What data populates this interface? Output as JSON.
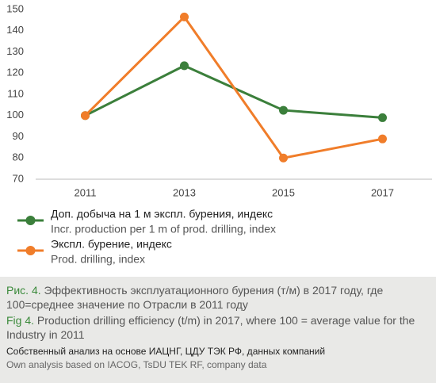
{
  "chart_data": {
    "type": "line",
    "categories": [
      "2011",
      "2013",
      "2015",
      "2017"
    ],
    "series": [
      {
        "name": "Доп. добыча на 1 м экспл. бурения, индекс",
        "name_en": "Incr. production per 1 m of prod. drilling, index",
        "color": "#3b7f3b",
        "values": [
          100,
          123.5,
          102.5,
          99
        ]
      },
      {
        "name": "Экспл. бурение, индекс",
        "name_en": "Prod. drilling, index",
        "color": "#f07d2a",
        "values": [
          100,
          146.5,
          80,
          89
        ]
      }
    ],
    "ylim": [
      70,
      150
    ],
    "yticks": [
      70,
      80,
      90,
      100,
      110,
      120,
      130,
      140,
      150
    ],
    "grid": false,
    "caption": {
      "label_ru": "Рис. 4.",
      "text_ru": "Эффективность эксплуатационного бурения (т/м) в 2017 году, где 100=среднее значение по Отрасли в 2011 году",
      "label_en": "Fig 4.",
      "text_en": "Production drilling efficiency (t/m) in 2017, where 100 = average value for the Industry in 2011"
    },
    "source_ru": "Собственный анализ на основе ИАЦНГ, ЦДУ ТЭК РФ, данных компаний",
    "source_en": "Own analysis based on IACOG, TsDU TEK RF, company data"
  }
}
